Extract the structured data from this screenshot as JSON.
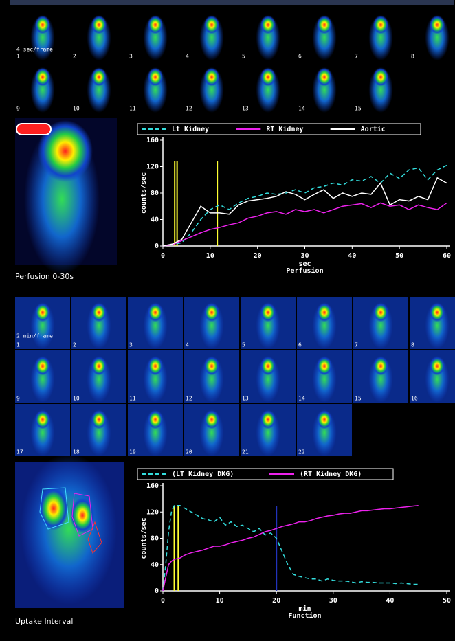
{
  "frames": {
    "perfusion_rate": "4 sec/frame",
    "perfusion_labels": [
      "1",
      "2",
      "3",
      "4",
      "5",
      "6",
      "7",
      "8",
      "9",
      "10",
      "11",
      "12",
      "13",
      "14",
      "15"
    ],
    "function_rate": "2 min/frame",
    "function_labels": [
      "1",
      "2",
      "3",
      "4",
      "5",
      "6",
      "7",
      "8",
      "9",
      "10",
      "11",
      "12",
      "13",
      "14",
      "15",
      "16",
      "17",
      "18",
      "19",
      "20",
      "21",
      "22"
    ]
  },
  "captions": {
    "perfusion": "Perfusion 0-30s",
    "function": "Uptake Interval"
  },
  "chart_data": [
    {
      "type": "line",
      "ylabel": "counts/sec",
      "xlabel": "sec",
      "subtitle": "Perfusion",
      "xlim": [
        0,
        60
      ],
      "xticks": [
        0,
        10,
        20,
        30,
        40,
        50,
        60
      ],
      "ylim": [
        0,
        160
      ],
      "yticks": [
        0,
        40,
        80,
        120,
        160
      ],
      "x": [
        0,
        2,
        4,
        6,
        8,
        10,
        12,
        14,
        16,
        18,
        20,
        22,
        24,
        26,
        28,
        30,
        32,
        34,
        36,
        38,
        40,
        42,
        44,
        46,
        48,
        50,
        52,
        54,
        56,
        58,
        60
      ],
      "series": [
        {
          "name": "Lt Kidney",
          "color": "#33dddd",
          "dashed": true,
          "values": [
            0,
            2,
            5,
            20,
            40,
            55,
            62,
            55,
            65,
            72,
            75,
            80,
            78,
            80,
            85,
            80,
            88,
            90,
            95,
            92,
            100,
            98,
            105,
            95,
            110,
            102,
            115,
            118,
            100,
            115,
            122
          ]
        },
        {
          "name": "RT Kidney",
          "color": "#ee22ee",
          "dashed": false,
          "values": [
            0,
            2,
            8,
            14,
            20,
            25,
            28,
            32,
            35,
            42,
            45,
            50,
            52,
            48,
            55,
            52,
            55,
            50,
            55,
            60,
            62,
            64,
            58,
            65,
            60,
            62,
            55,
            62,
            58,
            55,
            65
          ]
        },
        {
          "name": "Aortic",
          "color": "#ffffff",
          "dashed": false,
          "values": [
            0,
            3,
            10,
            35,
            60,
            50,
            50,
            48,
            62,
            68,
            70,
            72,
            75,
            82,
            78,
            70,
            78,
            85,
            72,
            80,
            75,
            80,
            78,
            95,
            62,
            70,
            68,
            75,
            70,
            103,
            95
          ]
        }
      ],
      "markers": [
        {
          "x": 2.5,
          "color": "#ffff33"
        },
        {
          "x": 3,
          "color": "#ffff33"
        },
        {
          "x": 11.5,
          "color": "#ffff33"
        }
      ]
    },
    {
      "type": "line",
      "ylabel": "counts/sec",
      "xlabel": "min",
      "subtitle": "Function",
      "xlim": [
        0,
        50
      ],
      "xticks": [
        0,
        10,
        20,
        30,
        40,
        50
      ],
      "ylim": [
        0,
        160
      ],
      "yticks": [
        0,
        40,
        80,
        120,
        160
      ],
      "x": [
        0,
        0.5,
        1,
        1.5,
        2,
        3,
        4,
        5,
        6,
        7,
        8,
        9,
        10,
        11,
        12,
        13,
        14,
        15,
        16,
        17,
        18,
        19,
        20,
        21,
        22,
        23,
        24,
        25,
        26,
        27,
        28,
        29,
        30,
        31,
        32,
        33,
        34,
        35,
        36,
        37,
        38,
        39,
        40,
        41,
        42,
        43,
        44,
        45
      ],
      "series": [
        {
          "name": "(LT Kidney DKG)",
          "color": "#33dddd",
          "dashed": true,
          "values": [
            0,
            40,
            90,
            120,
            130,
            130,
            125,
            120,
            115,
            110,
            108,
            105,
            112,
            100,
            105,
            98,
            100,
            95,
            90,
            95,
            85,
            88,
            80,
            60,
            40,
            25,
            22,
            20,
            18,
            18,
            15,
            18,
            16,
            15,
            15,
            14,
            12,
            14,
            13,
            13,
            12,
            12,
            12,
            11,
            12,
            11,
            10,
            10
          ]
        },
        {
          "name": "(RT Kidney DKG)",
          "color": "#ee22ee",
          "dashed": false,
          "values": [
            0,
            20,
            40,
            45,
            48,
            50,
            55,
            58,
            60,
            62,
            65,
            68,
            68,
            70,
            73,
            75,
            77,
            80,
            82,
            86,
            90,
            92,
            95,
            98,
            100,
            102,
            105,
            105,
            107,
            110,
            112,
            114,
            115,
            117,
            118,
            118,
            120,
            122,
            122,
            123,
            124,
            125,
            125,
            126,
            127,
            128,
            129,
            130
          ]
        }
      ],
      "markers": [
        {
          "x": 2,
          "color": "#ffff33"
        },
        {
          "x": 2.7,
          "color": "#ffff33"
        },
        {
          "x": 20,
          "color": "#2233bb"
        }
      ]
    }
  ]
}
